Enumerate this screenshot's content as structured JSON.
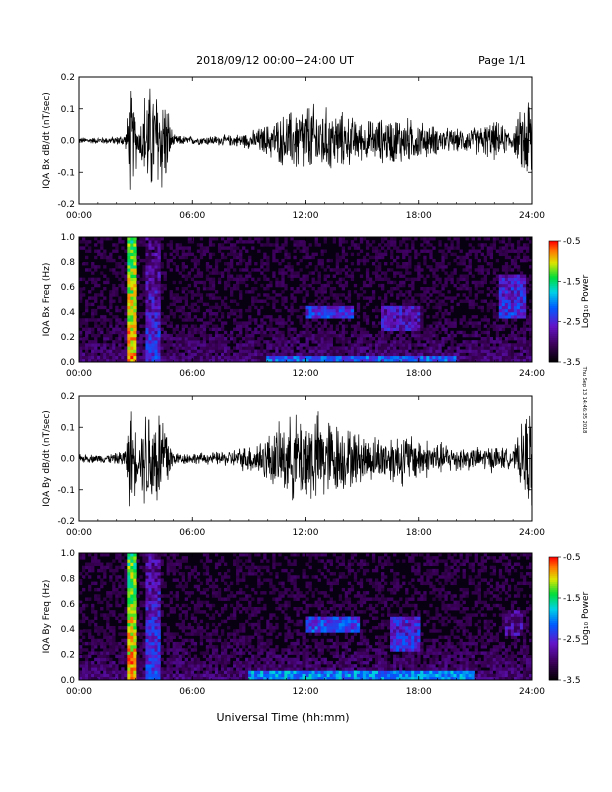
{
  "header": {
    "date_range": "2018/09/12   00:00−24:00  UT",
    "page": "Page 1/1"
  },
  "footer": {
    "xlabel": "Universal Time (hh:mm)",
    "side_note": "Thu Sep 13 14:46:35 2018"
  },
  "x_ticks": [
    "00:00",
    "06:00",
    "12:00",
    "18:00",
    "24:00"
  ],
  "colorbar": {
    "ticks": [
      "-0.5",
      "-1.5",
      "-2.5",
      "-3.5"
    ],
    "label": "Log₁₀ Power"
  },
  "chart_data": [
    {
      "type": "line",
      "ylabel": "IQA Bx dB/dt (nT/sec)",
      "xlim": [
        0,
        24
      ],
      "ylim": [
        -0.2,
        0.2
      ],
      "yticks": [
        "0.2",
        "0.1",
        "0.0",
        "-0.1",
        "-0.2"
      ],
      "note": "envelope (half-amplitude, nT/sec) vs hour",
      "x": [
        0,
        1,
        2,
        2.5,
        2.7,
        3.2,
        3.5,
        3.7,
        4.5,
        5,
        6,
        7,
        8,
        9,
        10,
        11,
        12,
        13,
        14,
        15,
        16,
        17,
        18,
        19,
        20,
        21,
        22,
        23,
        23.9
      ],
      "amplitude": [
        0.012,
        0.012,
        0.015,
        0.03,
        0.2,
        0.05,
        0.2,
        0.2,
        0.2,
        0.02,
        0.015,
        0.018,
        0.02,
        0.03,
        0.06,
        0.1,
        0.14,
        0.12,
        0.1,
        0.07,
        0.08,
        0.09,
        0.07,
        0.05,
        0.04,
        0.05,
        0.07,
        0.035,
        0.2
      ]
    },
    {
      "type": "heatmap",
      "ylabel": "IQA Bx Freq (Hz)",
      "xlim": [
        0,
        24
      ],
      "ylim": [
        0.0,
        1.0
      ],
      "yticks": [
        "1.0",
        "0.8",
        "0.6",
        "0.4",
        "0.2",
        "0.0"
      ],
      "zlim": [
        -3.5,
        -0.5
      ],
      "bands": [
        {
          "x": [
            2.6,
            3.0
          ],
          "f": [
            0,
            1.0
          ],
          "z": -0.8
        },
        {
          "x": [
            3.5,
            4.3
          ],
          "f": [
            0,
            1.0
          ],
          "z": -2.4
        },
        {
          "x": [
            10,
            20
          ],
          "f": [
            0,
            0.06
          ],
          "z": -2.2
        },
        {
          "x": [
            12,
            14.5
          ],
          "f": [
            0.36,
            0.46
          ],
          "z": -2.4
        },
        {
          "x": [
            16,
            18
          ],
          "f": [
            0.25,
            0.45
          ],
          "z": -2.6
        },
        {
          "x": [
            22.3,
            23.7
          ],
          "f": [
            0.35,
            0.7
          ],
          "z": -2.4
        }
      ]
    },
    {
      "type": "line",
      "ylabel": "IQA By dB/dt (nT/sec)",
      "xlim": [
        0,
        24
      ],
      "ylim": [
        -0.2,
        0.2
      ],
      "yticks": [
        "0.2",
        "0.1",
        "0.0",
        "-0.1",
        "-0.2"
      ],
      "note": "envelope (half-amplitude, nT/sec) vs hour",
      "x": [
        0,
        1,
        2,
        2.5,
        2.7,
        3.2,
        3.5,
        3.7,
        4.5,
        5,
        6,
        7,
        8,
        9,
        10,
        11,
        12,
        13,
        14,
        15,
        16,
        17,
        18,
        19,
        20,
        21,
        22,
        23,
        23.9
      ],
      "amplitude": [
        0.015,
        0.015,
        0.02,
        0.04,
        0.2,
        0.06,
        0.2,
        0.2,
        0.2,
        0.025,
        0.02,
        0.022,
        0.03,
        0.05,
        0.09,
        0.14,
        0.18,
        0.16,
        0.12,
        0.09,
        0.08,
        0.1,
        0.08,
        0.06,
        0.05,
        0.04,
        0.05,
        0.03,
        0.2
      ]
    },
    {
      "type": "heatmap",
      "ylabel": "IQA By Freq (Hz)",
      "xlim": [
        0,
        24
      ],
      "ylim": [
        0.0,
        1.0
      ],
      "yticks": [
        "1.0",
        "0.8",
        "0.6",
        "0.4",
        "0.2",
        "0.0"
      ],
      "zlim": [
        -3.5,
        -0.5
      ],
      "bands": [
        {
          "x": [
            2.6,
            3.0
          ],
          "f": [
            0,
            1.0
          ],
          "z": -0.8
        },
        {
          "x": [
            3.5,
            4.3
          ],
          "f": [
            0,
            1.0
          ],
          "z": -2.3
        },
        {
          "x": [
            9,
            21
          ],
          "f": [
            0,
            0.08
          ],
          "z": -2.0
        },
        {
          "x": [
            12,
            14.8
          ],
          "f": [
            0.38,
            0.5
          ],
          "z": -2.3
        },
        {
          "x": [
            16.5,
            18
          ],
          "f": [
            0.22,
            0.5
          ],
          "z": -2.4
        },
        {
          "x": [
            22.5,
            23.5
          ],
          "f": [
            0.35,
            0.55
          ],
          "z": -2.8
        }
      ]
    }
  ]
}
